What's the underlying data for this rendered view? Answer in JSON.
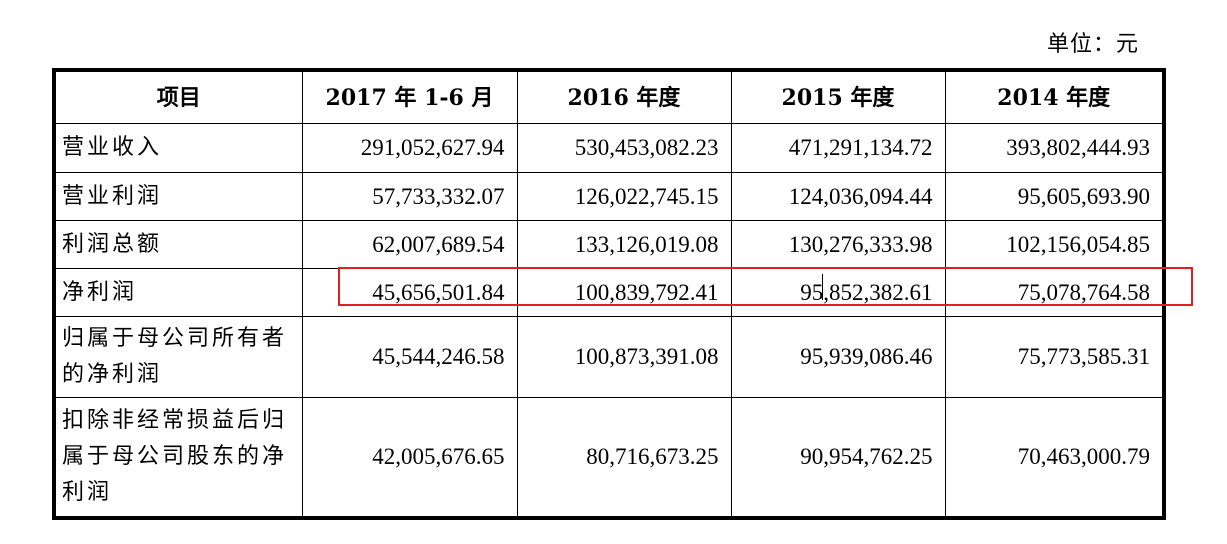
{
  "unit_label": "单位：元",
  "table": {
    "headers": [
      "项目",
      "2017 年 1-6 月",
      "2016 年度",
      "2015 年度",
      "2014 年度"
    ],
    "rows": [
      {
        "label": "营业收入",
        "values": [
          "291,052,627.94",
          "530,453,082.23",
          "471,291,134.72",
          "393,802,444.93"
        ]
      },
      {
        "label": "营业利润",
        "values": [
          "57,733,332.07",
          "126,022,745.15",
          "124,036,094.44",
          "95,605,693.90"
        ]
      },
      {
        "label": "利润总额",
        "values": [
          "62,007,689.54",
          "133,126,019.08",
          "130,276,333.98",
          "102,156,054.85"
        ]
      },
      {
        "label": "净利润",
        "values": [
          "45,656,501.84",
          "100,839,792.41",
          "95,852,382.61",
          "75,078,764.58"
        ]
      },
      {
        "label": "归属于母公司所有者的净利润",
        "values": [
          "45,544,246.58",
          "100,873,391.08",
          "95,939,086.46",
          "75,773,585.31"
        ]
      },
      {
        "label": "扣除非经常损益后归属于母公司股东的净利润",
        "values": [
          "42,005,676.65",
          "80,716,673.25",
          "90,954,762.25",
          "70,463,000.79"
        ]
      }
    ]
  },
  "highlight_color": "#e02020"
}
